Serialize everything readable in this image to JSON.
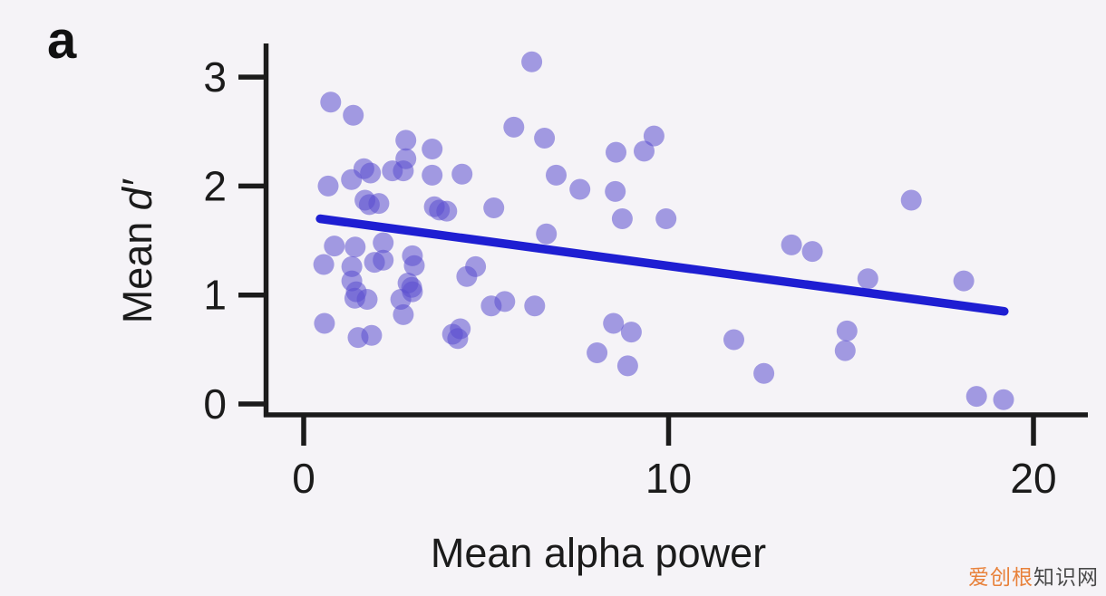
{
  "panel_label": "a",
  "watermark": {
    "brand": "爱创根",
    "suffix": "知识网",
    "brand_color": "#e8813a",
    "suffix_color": "#4a4a4a"
  },
  "chart_data": {
    "type": "scatter",
    "title": "",
    "xlabel": "Mean alpha power",
    "ylabel": "Mean d′",
    "ylabel_prefix": "Mean ",
    "ylabel_symbol": "d′",
    "xlim": [
      0,
      21.5
    ],
    "ylim": [
      0,
      3.4
    ],
    "x_ticks": [
      "0",
      "10",
      "20"
    ],
    "x_tick_values": [
      0,
      10,
      20
    ],
    "y_ticks": [
      "0",
      "1",
      "2",
      "3"
    ],
    "y_tick_values": [
      0,
      1,
      2,
      3
    ],
    "grid": false,
    "legend": "none",
    "axis_color": "#1b1b1b",
    "point_color": "#5b4fcf",
    "point_opacity": 0.55,
    "trend_line": {
      "color": "#1e1ed2",
      "x1": 0.45,
      "y1": 1.7,
      "x2": 19.2,
      "y2": 0.85
    },
    "points": [
      [
        0.74,
        2.77
      ],
      [
        1.36,
        2.65
      ],
      [
        6.25,
        3.14
      ],
      [
        5.76,
        2.54
      ],
      [
        2.8,
        2.42
      ],
      [
        3.52,
        2.34
      ],
      [
        2.8,
        2.25
      ],
      [
        1.65,
        2.16
      ],
      [
        1.83,
        2.12
      ],
      [
        2.43,
        2.14
      ],
      [
        2.73,
        2.14
      ],
      [
        3.52,
        2.1
      ],
      [
        4.34,
        2.11
      ],
      [
        0.67,
        2.0
      ],
      [
        1.31,
        2.06
      ],
      [
        1.68,
        1.87
      ],
      [
        1.8,
        1.83
      ],
      [
        2.06,
        1.84
      ],
      [
        3.58,
        1.81
      ],
      [
        3.72,
        1.78
      ],
      [
        3.92,
        1.77
      ],
      [
        5.21,
        1.8
      ],
      [
        6.6,
        2.44
      ],
      [
        8.56,
        2.31
      ],
      [
        9.6,
        2.46
      ],
      [
        9.33,
        2.32
      ],
      [
        6.92,
        2.1
      ],
      [
        7.57,
        1.97
      ],
      [
        8.54,
        1.95
      ],
      [
        8.73,
        1.7
      ],
      [
        9.93,
        1.7
      ],
      [
        6.65,
        1.56
      ],
      [
        13.37,
        1.46
      ],
      [
        13.94,
        1.4
      ],
      [
        16.65,
        1.87
      ],
      [
        0.84,
        1.45
      ],
      [
        1.41,
        1.44
      ],
      [
        2.18,
        1.48
      ],
      [
        0.55,
        1.28
      ],
      [
        1.32,
        1.26
      ],
      [
        1.94,
        1.3
      ],
      [
        2.18,
        1.32
      ],
      [
        2.98,
        1.36
      ],
      [
        3.03,
        1.27
      ],
      [
        1.32,
        1.13
      ],
      [
        1.44,
        1.03
      ],
      [
        1.4,
        0.97
      ],
      [
        1.74,
        0.96
      ],
      [
        2.86,
        1.11
      ],
      [
        2.96,
        1.07
      ],
      [
        2.98,
        1.03
      ],
      [
        2.66,
        0.96
      ],
      [
        2.73,
        0.82
      ],
      [
        0.57,
        0.74
      ],
      [
        1.49,
        0.61
      ],
      [
        1.86,
        0.63
      ],
      [
        4.08,
        0.64
      ],
      [
        4.22,
        0.6
      ],
      [
        4.29,
        0.69
      ],
      [
        4.47,
        1.17
      ],
      [
        4.71,
        1.26
      ],
      [
        5.14,
        0.9
      ],
      [
        5.51,
        0.94
      ],
      [
        6.33,
        0.9
      ],
      [
        8.49,
        0.74
      ],
      [
        8.98,
        0.66
      ],
      [
        8.04,
        0.47
      ],
      [
        8.88,
        0.35
      ],
      [
        11.79,
        0.59
      ],
      [
        12.61,
        0.28
      ],
      [
        15.46,
        1.15
      ],
      [
        18.09,
        1.13
      ],
      [
        14.89,
        0.67
      ],
      [
        14.84,
        0.49
      ],
      [
        18.44,
        0.07
      ],
      [
        19.18,
        0.04
      ]
    ]
  }
}
